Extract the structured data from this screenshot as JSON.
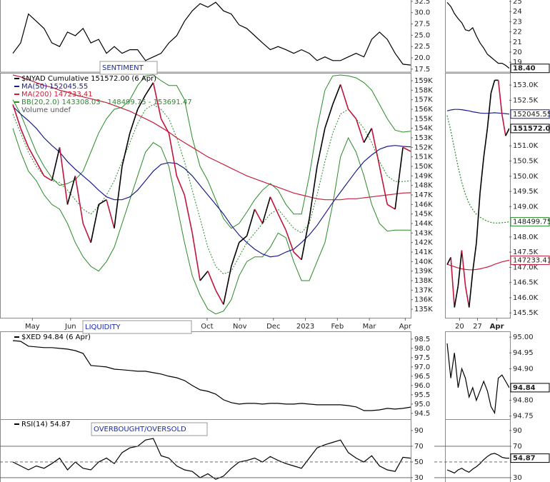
{
  "chart_data": [
    {
      "type": "line",
      "annotation": "SENTIMENT",
      "xlim": [
        0,
        51
      ],
      "ylim": [
        17.0,
        32.8
      ],
      "yticks": [
        32.5,
        {
          "value": 30,
          "label": "30.0"
        },
        27.5,
        {
          "value": 25,
          "label": "25.0"
        },
        22.5,
        {
          "value": 20,
          "label": "20.0"
        },
        17.5
      ],
      "series": [
        {
          "color": "#000000",
          "values": [
            21.0,
            23.3,
            29.7,
            28.1,
            26.5,
            23.3,
            22.5,
            25.7,
            24.9,
            26.5,
            23.3,
            24.1,
            21.0,
            22.5,
            21.0,
            21.8,
            21.8,
            19.4,
            20.2,
            21.0,
            23.3,
            24.9,
            28.1,
            30.4,
            32.0,
            31.2,
            32.3,
            30.4,
            29.7,
            27.3,
            26.5,
            24.9,
            23.3,
            21.8,
            22.5,
            21.8,
            21.0,
            21.8,
            21.0,
            19.4,
            20.2,
            19.4,
            19.4,
            20.2,
            21.0,
            20.2,
            24.1,
            25.7,
            24.1,
            21.0,
            18.6,
            18.4
          ]
        }
      ]
    },
    {
      "type": "line",
      "volume_note": "Volume undef",
      "xlim": [
        0,
        51
      ],
      "ylim": [
        134100,
        159750
      ],
      "xticks": [
        {
          "value": 2.5,
          "label": "May"
        },
        {
          "value": 7.4,
          "label": "Jun"
        },
        {
          "value": 24.9,
          "label": "Oct"
        },
        {
          "value": 29.1,
          "label": "Nov"
        },
        {
          "value": 33.4,
          "label": "Dec"
        },
        {
          "value": 37.5,
          "label": "2023"
        },
        {
          "value": 41.6,
          "label": "Feb"
        },
        {
          "value": 45.7,
          "label": "Mar"
        },
        {
          "value": 50.3,
          "label": "Apr"
        }
      ],
      "yticks": [
        {
          "value": 159000,
          "label": "159K"
        },
        {
          "value": 158000,
          "label": "158K"
        },
        {
          "value": 157000,
          "label": "157K"
        },
        {
          "value": 156000,
          "label": "156K"
        },
        {
          "value": 155000,
          "label": "155K"
        },
        {
          "value": 154000,
          "label": "154K"
        },
        {
          "value": 153000,
          "label": "153K"
        },
        {
          "value": 152000,
          "label": "152K"
        },
        {
          "value": 151000,
          "label": "151K"
        },
        {
          "value": 150000,
          "label": "150K"
        },
        {
          "value": 149000,
          "label": "149K"
        },
        {
          "value": 148000,
          "label": "148K"
        },
        {
          "value": 147000,
          "label": "147K"
        },
        {
          "value": 146000,
          "label": "146K"
        },
        {
          "value": 145000,
          "label": "145K"
        },
        {
          "value": 144000,
          "label": "144K"
        },
        {
          "value": 143000,
          "label": "143K"
        },
        {
          "value": 142000,
          "label": "142K"
        },
        {
          "value": 141000,
          "label": "141K"
        },
        {
          "value": 140000,
          "label": "140K"
        },
        {
          "value": 139000,
          "label": "139K"
        },
        {
          "value": 138000,
          "label": "138K"
        },
        {
          "value": 137000,
          "label": "137K"
        },
        {
          "value": 136000,
          "label": "136K"
        },
        {
          "value": 135000,
          "label": "135K"
        }
      ],
      "band": {
        "name": "BB(20,2.0) 143308.03 - 148499.75 - 153691.47",
        "color": "#2a8a2a",
        "upper": [
          157000,
          155500,
          153500,
          151500,
          150000,
          148800,
          148000,
          148200,
          148600,
          149500,
          151500,
          153500,
          155000,
          156000,
          156200,
          157000,
          158500,
          159500,
          159600,
          159000,
          158500,
          158500,
          157000,
          153000,
          150000,
          148500,
          146500,
          144500,
          143500,
          144000,
          145200,
          146500,
          147500,
          148200,
          147500,
          146000,
          145000,
          145000,
          149000,
          154000,
          158000,
          159500,
          159600,
          159500,
          159300,
          158800,
          158000,
          156500,
          155000,
          153800,
          153600,
          153691.47
        ],
        "middle": [
          155500,
          153500,
          151500,
          150000,
          149000,
          148500,
          148300,
          147500,
          146500,
          145500,
          145000,
          145800,
          147000,
          148500,
          150500,
          152500,
          154500,
          156000,
          156500,
          156000,
          155000,
          153000,
          150500,
          147500,
          144500,
          141500,
          139500,
          138700,
          139000,
          140500,
          142000,
          143000,
          144000,
          145000,
          145500,
          144500,
          143500,
          143000,
          144000,
          147000,
          150500,
          153500,
          155500,
          156000,
          155000,
          154000,
          152500,
          150500,
          149000,
          148400,
          148400,
          148499.75
        ],
        "lower": [
          154000,
          151500,
          149500,
          148500,
          147000,
          146000,
          145500,
          144000,
          142000,
          140500,
          139500,
          139000,
          140000,
          141500,
          144000,
          146500,
          149000,
          151500,
          152500,
          152000,
          150000,
          146000,
          142000,
          138500,
          136500,
          135000,
          134500,
          134800,
          136000,
          138500,
          140000,
          140500,
          140500,
          141500,
          143000,
          142500,
          140000,
          138000,
          138000,
          140000,
          142000,
          146000,
          151000,
          153000,
          151500,
          149000,
          146000,
          144000,
          143200,
          143300,
          143300,
          143308.03
        ]
      },
      "series": [
        {
          "name": "$NYAD Cumulative 151572.00 (6 Apr)",
          "color": "#000000",
          "down_color": "#c0143c",
          "values": [
            156500,
            154000,
            152000,
            150500,
            149000,
            148500,
            152000,
            146000,
            149000,
            144000,
            142000,
            146000,
            146500,
            143500,
            150000,
            153500,
            156000,
            157500,
            158800,
            155000,
            153500,
            149000,
            147000,
            143000,
            138000,
            139000,
            137000,
            135500,
            139500,
            142000,
            142700,
            145500,
            144000,
            146800,
            145000,
            143300,
            141000,
            140200,
            144500,
            150000,
            154000,
            156500,
            158600,
            156000,
            155000,
            152500,
            154000,
            150000,
            146000,
            145500,
            152000,
            151572
          ]
        },
        {
          "name": "MA(50) 152045.55",
          "color": "#1c1c8c",
          "values": [
            156300,
            155500,
            154800,
            154000,
            153000,
            152200,
            151500,
            150500,
            149700,
            149000,
            148300,
            147500,
            146800,
            146500,
            146500,
            146800,
            147500,
            148500,
            149500,
            150200,
            150400,
            150300,
            149800,
            149000,
            148000,
            147000,
            146000,
            145000,
            143800,
            142800,
            142000,
            141300,
            140800,
            140500,
            140600,
            141000,
            141300,
            142000,
            142800,
            143800,
            145000,
            146200,
            147300,
            148400,
            149500,
            150500,
            151200,
            151800,
            152100,
            152200,
            152100,
            152045.55
          ]
        },
        {
          "name": "MA(200) 147233.41",
          "color": "#c8203c",
          "values": [
            159600,
            159400,
            159100,
            158800,
            158500,
            158300,
            158000,
            157800,
            157500,
            157300,
            157100,
            156900,
            156700,
            156400,
            156100,
            155800,
            155400,
            155000,
            154600,
            154100,
            153600,
            153000,
            152500,
            152000,
            151500,
            151000,
            150600,
            150200,
            149800,
            149400,
            149000,
            148700,
            148400,
            148100,
            147800,
            147500,
            147200,
            147000,
            146800,
            146600,
            146500,
            146500,
            146500,
            146600,
            146600,
            146700,
            146800,
            146900,
            147000,
            147100,
            147200,
            147233.41
          ]
        }
      ]
    },
    {
      "type": "line",
      "annotation": "LIQUIDITY",
      "xlim": [
        0,
        51
      ],
      "ylim": [
        94.15,
        98.88
      ],
      "yticks": [
        98.5,
        {
          "value": 98,
          "label": "98.0"
        },
        97.5,
        {
          "value": 97,
          "label": "97.0"
        },
        96.5,
        {
          "value": 96,
          "label": "96.0"
        },
        95.5,
        {
          "value": 95,
          "label": "95.0"
        },
        94.5
      ],
      "series": [
        {
          "name": "$XED 94.84 (6 Apr)",
          "color": "#000000",
          "values": [
            98.42,
            98.38,
            98.12,
            98.08,
            98.04,
            98.04,
            98.0,
            97.96,
            97.88,
            97.73,
            97.08,
            97.04,
            97.0,
            96.88,
            96.85,
            96.81,
            96.77,
            96.77,
            96.69,
            96.62,
            96.5,
            96.42,
            96.27,
            96.0,
            95.77,
            95.69,
            95.54,
            95.23,
            95.08,
            95.0,
            95.04,
            95.04,
            95.0,
            95.04,
            95.04,
            95.0,
            95.0,
            95.04,
            95.0,
            94.96,
            94.96,
            94.96,
            94.96,
            94.92,
            94.85,
            94.65,
            94.65,
            94.69,
            94.77,
            94.73,
            94.77,
            94.84
          ]
        }
      ]
    },
    {
      "type": "line",
      "annotation": "OVERBOUGHT/OVERSOLD",
      "xlim": [
        0,
        51
      ],
      "ylim": [
        24.5,
        103.6
      ],
      "yticks": [
        90,
        70,
        50,
        30
      ],
      "hlines": [
        {
          "value": 70
        },
        {
          "value": 50,
          "dashed": true
        },
        {
          "value": 30
        }
      ],
      "series": [
        {
          "name": "RSI(14) 54.87",
          "color": "#000000",
          "values": [
            50,
            45,
            40,
            45,
            42,
            48,
            55,
            40,
            50,
            42,
            40,
            50,
            55,
            48,
            62,
            68,
            70,
            78,
            80,
            58,
            55,
            45,
            40,
            38,
            30,
            35,
            28,
            32,
            42,
            50,
            52,
            55,
            50,
            57,
            52,
            48,
            45,
            42,
            55,
            68,
            72,
            75,
            78,
            62,
            55,
            50,
            58,
            45,
            40,
            38,
            56,
            54.87
          ]
        }
      ]
    },
    {
      "type": "line",
      "xlim": [
        0,
        17
      ],
      "ylim": [
        18.1,
        25.14
      ],
      "yticks": [
        25,
        24,
        23,
        22,
        21,
        20,
        19
      ],
      "series": [
        {
          "color": "#000000",
          "last_label": "18.40",
          "values": [
            24.9,
            24.5,
            23.8,
            23.3,
            22.9,
            22.2,
            22.1,
            22.4,
            21.6,
            20.9,
            20.4,
            19.8,
            19.5,
            19.2,
            18.9,
            18.9,
            18.7,
            18.4
          ]
        }
      ]
    },
    {
      "type": "line",
      "xlim": [
        0,
        17
      ],
      "ylim": [
        145340,
        153380
      ],
      "xticks": [
        {
          "value": 3.4,
          "label": "20"
        },
        {
          "value": 8.3,
          "label": "27"
        },
        {
          "value": 13.6,
          "label": "Apr"
        }
      ],
      "yticks": [
        {
          "value": 153000,
          "label": "153.0K"
        },
        {
          "value": 152500,
          "label": "152.5K"
        },
        {
          "value": 151000,
          "label": "151.0K"
        },
        {
          "value": 150500,
          "label": "150.5K"
        },
        {
          "value": 150000,
          "label": "150.0K"
        },
        {
          "value": 149500,
          "label": "149.5K"
        },
        {
          "value": 149000,
          "label": "149.0K"
        },
        {
          "value": 148000,
          "label": "148.0K"
        },
        {
          "value": 147500,
          "label": "147.5K"
        },
        {
          "value": 147000,
          "label": "147.0K"
        },
        {
          "value": 146500,
          "label": "146.5K"
        },
        {
          "value": 146000,
          "label": "146.0K"
        },
        {
          "value": 145500,
          "label": "145.5K"
        }
      ],
      "series": [
        {
          "color": "#1c1c8c",
          "last_label": "152045.55",
          "values": [
            152150,
            152180,
            152200,
            152200,
            152190,
            152170,
            152150,
            152120,
            152100,
            152080,
            152070,
            152070,
            152080,
            152090,
            152080,
            152070,
            152060,
            152045.55
          ]
        },
        {
          "color": "#000000",
          "down_color": "#c0143c",
          "last_label": "151572.00",
          "values": [
            147090,
            147330,
            145680,
            146390,
            147560,
            146390,
            145680,
            146860,
            147800,
            149450,
            150620,
            151560,
            152740,
            153160,
            153160,
            152040,
            151330,
            151572
          ]
        },
        {
          "color": "#2a8a2a",
          "dashed": true,
          "last_label": "148499.75",
          "values": [
            152000,
            151500,
            150900,
            150300,
            149800,
            149400,
            149100,
            148900,
            148750,
            148650,
            148580,
            148520,
            148480,
            148460,
            148460,
            148470,
            148480,
            148499.75
          ]
        },
        {
          "color": "#c8203c",
          "last_label": "147233.41",
          "values": [
            147100,
            147060,
            147020,
            146980,
            146950,
            146930,
            146920,
            146920,
            146930,
            146950,
            146980,
            147010,
            147050,
            147100,
            147140,
            147180,
            147210,
            147233.41
          ]
        }
      ]
    },
    {
      "type": "line",
      "xlim": [
        0,
        17
      ],
      "ylim": [
        94.738,
        95.016
      ],
      "yticks": [
        {
          "value": 95,
          "label": "95.00"
        },
        94.95,
        {
          "value": 94.9,
          "label": "94.90"
        },
        {
          "value": 94.8,
          "label": "94.80"
        },
        94.75
      ],
      "series": [
        {
          "color": "#000000",
          "last_label": "94.84",
          "values": [
            94.98,
            94.87,
            94.95,
            94.84,
            94.9,
            94.87,
            94.81,
            94.84,
            94.8,
            94.83,
            94.86,
            94.83,
            94.78,
            94.76,
            94.87,
            94.88,
            94.86,
            94.84
          ]
        }
      ]
    },
    {
      "type": "line",
      "xlim": [
        0,
        17
      ],
      "ylim": [
        24.5,
        103.6
      ],
      "yticks": [
        90,
        70,
        30
      ],
      "hlines": [
        {
          "value": 70
        },
        {
          "value": 50,
          "dashed": true
        },
        {
          "value": 30
        }
      ],
      "series": [
        {
          "color": "#000000",
          "last_label": "54.87",
          "values": [
            40,
            38,
            36,
            40,
            42,
            39,
            37,
            41,
            44,
            48,
            53,
            57,
            60,
            61,
            59,
            56,
            55,
            54.87
          ]
        }
      ]
    }
  ]
}
